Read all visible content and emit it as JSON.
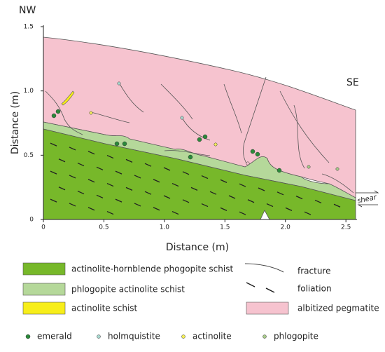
{
  "orientation": {
    "left": "NW",
    "right": "SE"
  },
  "x_axis": {
    "label": "Distance (m)",
    "lim": [
      0,
      2.58
    ],
    "ticks": [
      0,
      0.5,
      {
        "value": 1,
        "label": "1.0"
      },
      1.5,
      {
        "value": 2,
        "label": "2.0"
      },
      2.5
    ]
  },
  "y_axis": {
    "label": "Distance (m)",
    "lim": [
      0,
      1.5
    ],
    "ticks": [
      0,
      0.5,
      {
        "value": 1,
        "label": "1.0"
      },
      1.5
    ]
  },
  "annotations": {
    "shear": "shear"
  },
  "legend": {
    "units": [
      {
        "label": "actinolite-hornblende phogopite schist",
        "color": "#77b82a"
      },
      {
        "label": "phlogopite actinolite schist",
        "color": "#b5d89a"
      },
      {
        "label": "actinolite schist",
        "color": "#f7ee1a"
      },
      {
        "label": "albitized pegmatite",
        "color": "#f6c3cf"
      }
    ],
    "structures": [
      {
        "label": "fracture"
      },
      {
        "label": "foliation"
      }
    ],
    "minerals": [
      {
        "label": "emerald",
        "color": "#2a8a3a"
      },
      {
        "label": "holmquistite",
        "color": "#a9d8cf"
      },
      {
        "label": "actinolite",
        "color": "#f3ee5a"
      },
      {
        "label": "phlogopite",
        "color": "#a7c98a"
      }
    ]
  }
}
